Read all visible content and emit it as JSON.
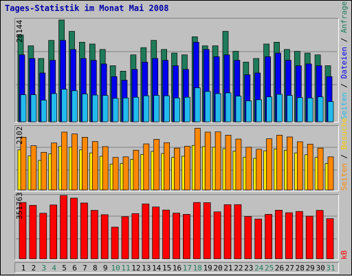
{
  "title": "Tages-Statistik im Monat Mai 2008",
  "colors": {
    "background": "#c0c0c0",
    "title": "#0000aa",
    "anfragen": "#1e7b5a",
    "dateien": "#0000ee",
    "seiten": "#22bbee",
    "besuche_front": "#ffee00",
    "besuche_back": "#ff8800",
    "kb": "#ff0000"
  },
  "labels": {
    "anfragen": "Anfragen",
    "dateien": "Dateien",
    "seiten_top": "Seiten",
    "besuche": "Besuche",
    "seiten_mid": "Seiten",
    "kb": "kB",
    "separator": " / "
  },
  "chart_data": [
    {
      "type": "bar",
      "panel": "anfragen-dateien-seiten",
      "ymax_label": "28144",
      "ylim": [
        0,
        28144
      ],
      "x": [
        "1",
        "2",
        "3",
        "4",
        "5",
        "6",
        "7",
        "8",
        "9",
        "10",
        "11",
        "12",
        "13",
        "14",
        "15",
        "16",
        "17",
        "18",
        "19",
        "20",
        "21",
        "22",
        "23",
        "24",
        "25",
        "26",
        "27",
        "28",
        "29",
        "30",
        "31"
      ],
      "weekend_days": [
        3,
        4,
        10,
        11,
        17,
        18,
        24,
        25,
        31
      ],
      "series": [
        {
          "name": "Anfragen",
          "values": [
            24000,
            21000,
            17500,
            22500,
            28144,
            25000,
            22000,
            21500,
            20000,
            15500,
            14000,
            18500,
            20500,
            22500,
            20000,
            19000,
            18500,
            23500,
            21000,
            21000,
            25000,
            19500,
            16500,
            17500,
            21500,
            22000,
            20000,
            19500,
            19000,
            18500,
            15500
          ]
        },
        {
          "name": "Dateien",
          "values": [
            18500,
            17500,
            13500,
            17000,
            22500,
            20000,
            17500,
            17000,
            16000,
            12500,
            11500,
            14500,
            16500,
            17500,
            17000,
            15500,
            14500,
            22000,
            20000,
            18000,
            18500,
            17000,
            13000,
            13500,
            18000,
            19000,
            17000,
            15500,
            16000,
            15500,
            12500
          ]
        },
        {
          "name": "Seiten",
          "values": [
            7500,
            7500,
            6000,
            7800,
            9000,
            8600,
            7700,
            7400,
            7300,
            6500,
            6600,
            6800,
            7200,
            7300,
            7200,
            6600,
            6800,
            9400,
            8400,
            7800,
            8000,
            7100,
            5800,
            6100,
            6900,
            7600,
            7300,
            6700,
            6600,
            6900,
            5600
          ]
        }
      ]
    },
    {
      "type": "bar",
      "panel": "besuche-seiten",
      "ymax_label": "2102",
      "ylim": [
        0,
        2102
      ],
      "x": [
        "1",
        "2",
        "3",
        "4",
        "5",
        "6",
        "7",
        "8",
        "9",
        "10",
        "11",
        "12",
        "13",
        "14",
        "15",
        "16",
        "17",
        "18",
        "19",
        "20",
        "21",
        "22",
        "23",
        "24",
        "25",
        "26",
        "27",
        "28",
        "29",
        "30",
        "31"
      ],
      "series": [
        {
          "name": "Seiten",
          "values": [
            1750,
            1470,
            1250,
            1560,
            1920,
            1860,
            1750,
            1610,
            1440,
            1080,
            1100,
            1320,
            1530,
            1680,
            1570,
            1390,
            1450,
            2050,
            1920,
            1930,
            1820,
            1690,
            1420,
            1350,
            1700,
            1820,
            1760,
            1600,
            1520,
            1390,
            1100
          ]
        },
        {
          "name": "Besuche",
          "values": [
            1330,
            1130,
            980,
            1200,
            1450,
            1420,
            1330,
            1230,
            1120,
            860,
            880,
            1020,
            1180,
            1280,
            1210,
            1080,
            1120,
            1480,
            1440,
            1420,
            1370,
            1290,
            1090,
            1050,
            1300,
            1360,
            1320,
            1230,
            1170,
            1080,
            880
          ]
        }
      ]
    },
    {
      "type": "bar",
      "panel": "kb",
      "ymax_label": "351763",
      "ylim": [
        0,
        351763
      ],
      "x": [
        "1",
        "2",
        "3",
        "4",
        "5",
        "6",
        "7",
        "8",
        "9",
        "10",
        "11",
        "12",
        "13",
        "14",
        "15",
        "16",
        "17",
        "18",
        "19",
        "20",
        "21",
        "22",
        "23",
        "24",
        "25",
        "26",
        "27",
        "28",
        "29",
        "30",
        "31"
      ],
      "series": [
        {
          "name": "kB",
          "values": [
            313000,
            297000,
            253000,
            299000,
            351763,
            337000,
            310000,
            269000,
            245000,
            176000,
            234000,
            251000,
            305000,
            288000,
            271000,
            254000,
            247000,
            313000,
            312000,
            261000,
            301000,
            301000,
            235000,
            221000,
            247000,
            270000,
            256000,
            263000,
            237000,
            269000,
            223000
          ]
        }
      ]
    }
  ]
}
